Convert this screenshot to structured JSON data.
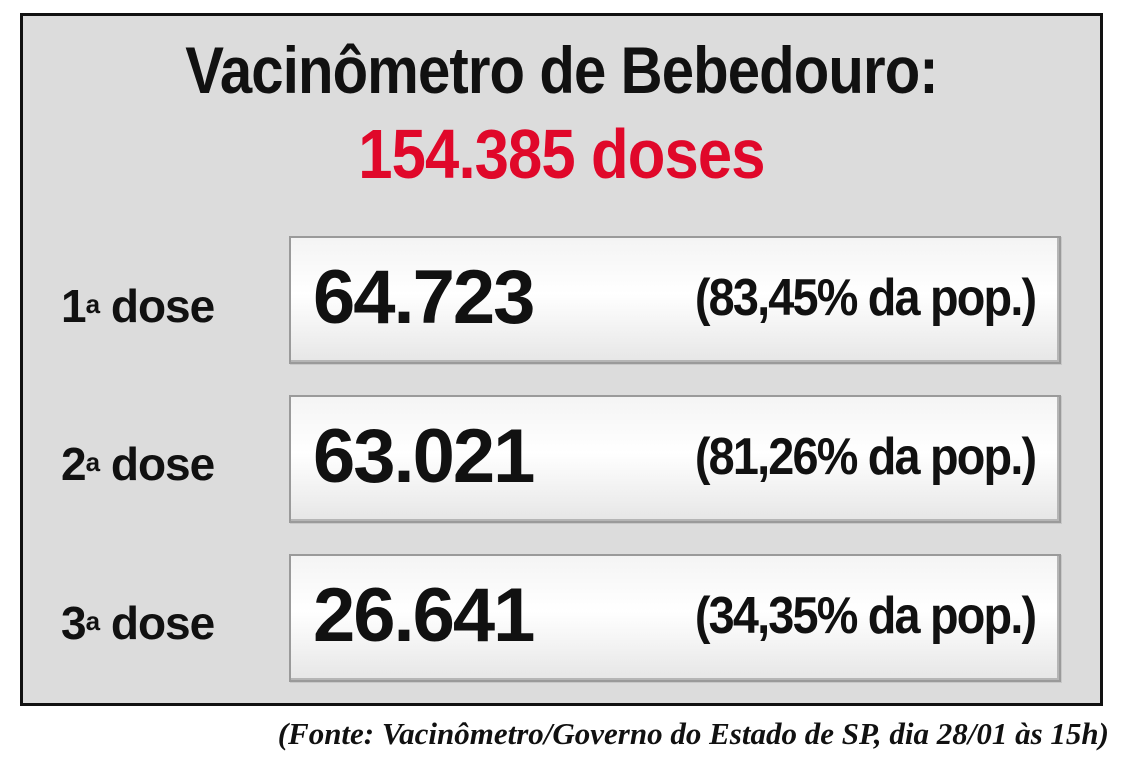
{
  "header": {
    "title": "Vacinômetro de Bebedouro:",
    "total": "154.385 doses"
  },
  "rows": [
    {
      "label_num": "1",
      "label_sup": "a",
      "label_text": " dose",
      "count": "64.723",
      "percent_text": "(83,45% da pop.)",
      "percent_value": 83.45
    },
    {
      "label_num": "2",
      "label_sup": "a",
      "label_text": " dose",
      "count": "63.021",
      "percent_text": "(81,26% da pop.)",
      "percent_value": 81.26
    },
    {
      "label_num": "3",
      "label_sup": "a",
      "label_text": " dose",
      "count": "26.641",
      "percent_text": "(34,35% da pop.)",
      "percent_value": 34.35
    }
  ],
  "source": "(Fonte: Vacinômetro/Governo do Estado de SP, dia 28/01 às 15h)",
  "colors": {
    "panel_background": "#dcdcdc",
    "accent_red": "#e0082a",
    "text": "#111111"
  }
}
